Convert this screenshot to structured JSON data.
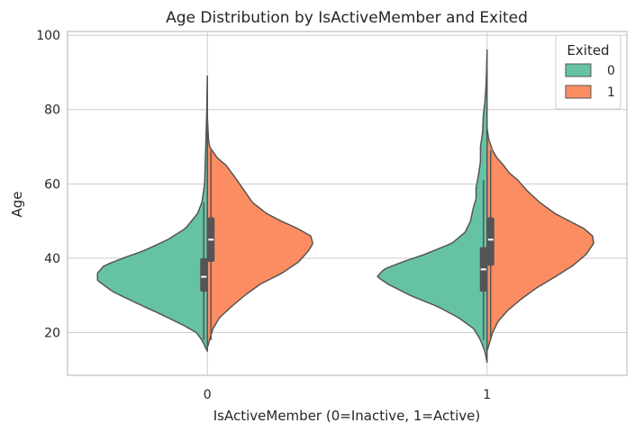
{
  "chart_data": {
    "type": "violin",
    "title": "Age Distribution by IsActiveMember and Exited",
    "xlabel": "IsActiveMember (0=Inactive, 1=Active)",
    "ylabel": "Age",
    "categories": [
      "0",
      "1"
    ],
    "ylim": [
      8.5,
      101
    ],
    "yticks": [
      20,
      40,
      60,
      80,
      100
    ],
    "grid": true,
    "legend": {
      "title": "Exited",
      "position": "top-right",
      "entries": [
        {
          "label": "0",
          "color": "#66c2a5"
        },
        {
          "label": "1",
          "color": "#fc8d62"
        }
      ]
    },
    "split": true,
    "series": [
      {
        "name": "0",
        "color": "#66c2a5",
        "side": "left",
        "groups": [
          {
            "category": "0",
            "min": 18,
            "q1": 31,
            "median": 35,
            "q3": 40,
            "max": 55,
            "kde_ymin": 15,
            "kde_ymax": 89,
            "density": [
              [
                15,
                0.0
              ],
              [
                18,
                0.05
              ],
              [
                20,
                0.1
              ],
              [
                22,
                0.22
              ],
              [
                25,
                0.43
              ],
              [
                28,
                0.65
              ],
              [
                31,
                0.86
              ],
              [
                34,
                1.0
              ],
              [
                36,
                1.0
              ],
              [
                38,
                0.94
              ],
              [
                40,
                0.77
              ],
              [
                42,
                0.58
              ],
              [
                45,
                0.36
              ],
              [
                48,
                0.2
              ],
              [
                52,
                0.09
              ],
              [
                55,
                0.05
              ],
              [
                60,
                0.025
              ],
              [
                65,
                0.02
              ],
              [
                70,
                0.015
              ],
              [
                75,
                0.01
              ],
              [
                80,
                0.005
              ],
              [
                85,
                0.003
              ],
              [
                89,
                0.0
              ]
            ]
          },
          {
            "category": "1",
            "min": 18,
            "q1": 31,
            "median": 37,
            "q3": 43,
            "max": 61,
            "kde_ymin": 12,
            "kde_ymax": 96,
            "density": [
              [
                12,
                0.0
              ],
              [
                15,
                0.02
              ],
              [
                18,
                0.06
              ],
              [
                21,
                0.12
              ],
              [
                24,
                0.26
              ],
              [
                27,
                0.45
              ],
              [
                30,
                0.7
              ],
              [
                33,
                0.9
              ],
              [
                35,
                1.0
              ],
              [
                37,
                0.94
              ],
              [
                39,
                0.77
              ],
              [
                41,
                0.57
              ],
              [
                44,
                0.32
              ],
              [
                47,
                0.2
              ],
              [
                50,
                0.15
              ],
              [
                53,
                0.13
              ],
              [
                56,
                0.1
              ],
              [
                59,
                0.1
              ],
              [
                62,
                0.08
              ],
              [
                66,
                0.06
              ],
              [
                70,
                0.06
              ],
              [
                74,
                0.04
              ],
              [
                78,
                0.035
              ],
              [
                82,
                0.02
              ],
              [
                86,
                0.01
              ],
              [
                90,
                0.005
              ],
              [
                96,
                0.0
              ]
            ]
          }
        ]
      },
      {
        "name": "1",
        "color": "#fc8d62",
        "side": "right",
        "groups": [
          {
            "category": "0",
            "min": 18,
            "q1": 39,
            "median": 45,
            "q3": 51,
            "max": 69,
            "kde_ymin": 16,
            "kde_ymax": 78,
            "density": [
              [
                16,
                0.0
              ],
              [
                18,
                0.02
              ],
              [
                21,
                0.05
              ],
              [
                24,
                0.11
              ],
              [
                27,
                0.22
              ],
              [
                30,
                0.34
              ],
              [
                33,
                0.48
              ],
              [
                36,
                0.68
              ],
              [
                39,
                0.83
              ],
              [
                42,
                0.92
              ],
              [
                44,
                0.96
              ],
              [
                46,
                0.94
              ],
              [
                48,
                0.82
              ],
              [
                50,
                0.67
              ],
              [
                52,
                0.54
              ],
              [
                55,
                0.41
              ],
              [
                58,
                0.34
              ],
              [
                61,
                0.27
              ],
              [
                63,
                0.22
              ],
              [
                65,
                0.17
              ],
              [
                67,
                0.09
              ],
              [
                70,
                0.02
              ],
              [
                72,
                0.01
              ],
              [
                75,
                0.005
              ],
              [
                78,
                0.0
              ]
            ]
          },
          {
            "category": "1",
            "min": 18,
            "q1": 38,
            "median": 45,
            "q3": 51,
            "max": 69,
            "kde_ymin": 15,
            "kde_ymax": 75,
            "density": [
              [
                15,
                0.0
              ],
              [
                17,
                0.02
              ],
              [
                20,
                0.05
              ],
              [
                23,
                0.1
              ],
              [
                26,
                0.19
              ],
              [
                29,
                0.31
              ],
              [
                32,
                0.45
              ],
              [
                35,
                0.62
              ],
              [
                38,
                0.78
              ],
              [
                41,
                0.9
              ],
              [
                44,
                0.97
              ],
              [
                46,
                0.96
              ],
              [
                48,
                0.88
              ],
              [
                50,
                0.75
              ],
              [
                52,
                0.62
              ],
              [
                55,
                0.48
              ],
              [
                58,
                0.37
              ],
              [
                61,
                0.28
              ],
              [
                63,
                0.2
              ],
              [
                65,
                0.15
              ],
              [
                67,
                0.09
              ],
              [
                69,
                0.05
              ],
              [
                72,
                0.015
              ],
              [
                75,
                0.0
              ]
            ]
          }
        ]
      }
    ]
  }
}
